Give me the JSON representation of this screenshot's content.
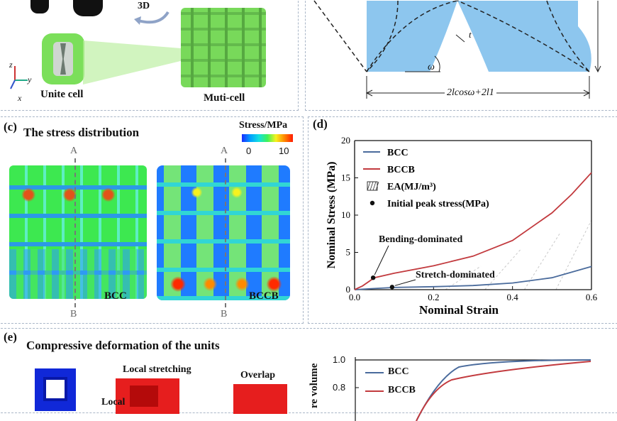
{
  "panel_a": {
    "label_3d": "3D",
    "unit_cell": "Unite cell",
    "multi_cell": "Muti-cell",
    "axis_z": "z",
    "axis_y": "y",
    "axis_x": "x"
  },
  "panel_b": {
    "t_label": "t",
    "omega_label": "ω",
    "dimension_label": "2lcosω+2l1"
  },
  "panel_c": {
    "tag": "(c)",
    "title": "The stress distribution",
    "colorbar_title": "Stress/MPa",
    "colorbar_min": "0",
    "colorbar_max": "10",
    "bcc_label": "BCC",
    "bccb_label": "BCCB",
    "section_top": "A",
    "section_bottom": "B"
  },
  "panel_d": {
    "tag": "(d)",
    "annotation_bending": "Bending-dominated",
    "annotation_stretch": "Stretch-dominated"
  },
  "panel_e": {
    "tag": "(e)",
    "title": "Compressive deformation of the units",
    "local_stretching": "Local stretching",
    "local_partial": "Local",
    "overlap": "Overlap",
    "ylabel_partial": "re volume",
    "legend_bcc": "BCC",
    "legend_bccb": "BCCB",
    "tick_10": "1.0",
    "tick_08": "0.8"
  },
  "chart_data": {
    "type": "line",
    "xlabel": "Nominal Strain",
    "ylabel": "Nominal Stress (MPa)",
    "xlim": [
      0,
      0.6
    ],
    "ylim": [
      0,
      20
    ],
    "xticks": [
      "0.0",
      "0.2",
      "0.4",
      "0.6"
    ],
    "yticks": [
      "0",
      "5",
      "10",
      "15",
      "20"
    ],
    "legend": [
      "BCC",
      "BCCB",
      "EA(MJ/m³)",
      "Initial peak stress(MPa)"
    ],
    "legend_position": "top-left",
    "series": [
      {
        "name": "BCC",
        "color": "#4a6b9c",
        "x": [
          0,
          0.05,
          0.1,
          0.2,
          0.3,
          0.4,
          0.5,
          0.6
        ],
        "y": [
          0,
          0.15,
          0.3,
          0.4,
          0.55,
          0.9,
          1.6,
          3.1
        ]
      },
      {
        "name": "BCCB",
        "color": "#c23a3e",
        "x": [
          0,
          0.02,
          0.05,
          0.1,
          0.2,
          0.3,
          0.4,
          0.5,
          0.55,
          0.6
        ],
        "y": [
          0,
          0.5,
          1.6,
          2.2,
          3.2,
          4.5,
          6.6,
          10.3,
          12.8,
          15.7
        ]
      }
    ],
    "peak_points": [
      {
        "x": 0.047,
        "y": 1.6
      },
      {
        "x": 0.095,
        "y": 0.35
      }
    ]
  }
}
